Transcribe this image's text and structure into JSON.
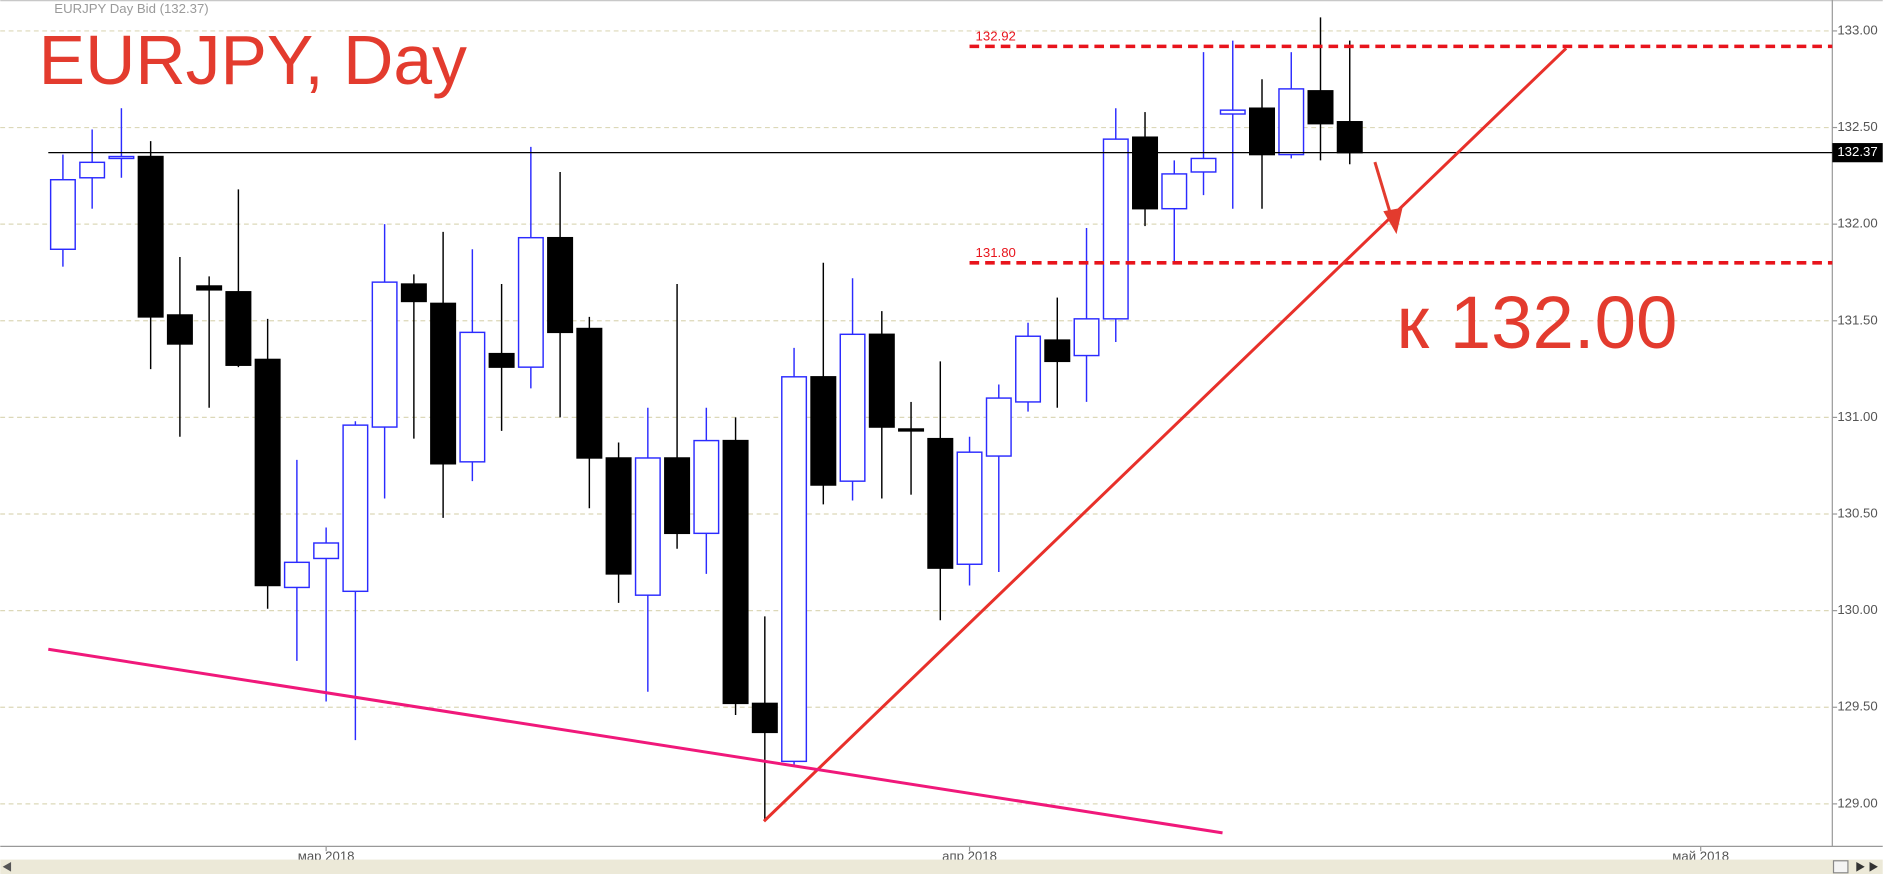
{
  "chart_data": {
    "type": "candlestick",
    "title": "EURJPY, Day",
    "subtitle": "EURJPY Day Bid (132.37)",
    "annotation": "к 132.00",
    "categories": [
      null,
      null,
      null,
      null,
      null,
      null,
      null,
      null,
      null,
      "мар 2018",
      null,
      null,
      null,
      null,
      null,
      null,
      null,
      null,
      null,
      null,
      null,
      null,
      null,
      null,
      null,
      null,
      null,
      null,
      null,
      null,
      null,
      "апр 2018",
      null,
      null,
      null,
      null,
      null,
      null,
      null,
      null,
      null,
      null,
      null,
      null,
      null,
      null,
      null,
      null,
      null,
      null,
      null,
      null,
      null,
      null,
      null,
      null,
      "май 2018",
      null,
      null,
      null,
      null
    ],
    "open": [
      131.87,
      132.24,
      132.34,
      132.35,
      131.53,
      131.68,
      131.65,
      131.3,
      130.12,
      130.27,
      130.1,
      130.95,
      131.69,
      131.59,
      130.77,
      131.33,
      131.26,
      131.93,
      131.46,
      130.79,
      130.08,
      130.79,
      130.4,
      130.88,
      129.52,
      129.22,
      131.21,
      130.67,
      131.43,
      130.94,
      130.89,
      130.24,
      130.8,
      131.08,
      131.4,
      131.32,
      131.51,
      132.45,
      132.08,
      132.27,
      132.57,
      132.6,
      132.36,
      132.69,
      132.53,
      null,
      null,
      null,
      null,
      null,
      null,
      null,
      null,
      null,
      null,
      null,
      null,
      null,
      null,
      null,
      null
    ],
    "high": [
      132.36,
      132.49,
      132.6,
      132.43,
      131.83,
      131.73,
      132.18,
      131.51,
      130.78,
      130.43,
      130.98,
      132.0,
      131.74,
      131.96,
      131.87,
      131.69,
      132.4,
      132.27,
      131.52,
      130.87,
      131.05,
      131.69,
      131.05,
      131.0,
      129.97,
      131.36,
      131.8,
      131.72,
      131.55,
      131.08,
      131.29,
      130.9,
      131.17,
      131.49,
      131.62,
      131.98,
      132.6,
      132.58,
      132.33,
      132.89,
      132.95,
      132.75,
      132.89,
      133.07,
      132.95,
      null,
      null,
      null,
      null,
      null,
      null,
      null,
      null,
      null,
      null,
      null,
      null,
      null,
      null,
      null,
      null
    ],
    "low": [
      131.78,
      132.08,
      132.24,
      131.25,
      130.9,
      131.05,
      131.26,
      130.01,
      129.74,
      129.53,
      129.33,
      130.58,
      130.89,
      130.48,
      130.67,
      130.93,
      131.15,
      131.0,
      130.53,
      130.04,
      129.58,
      130.32,
      130.19,
      129.46,
      128.91,
      129.2,
      130.55,
      130.57,
      130.58,
      130.6,
      129.95,
      130.13,
      130.2,
      131.03,
      131.05,
      131.08,
      131.39,
      131.99,
      131.8,
      132.15,
      132.08,
      132.08,
      132.34,
      132.33,
      132.31,
      null,
      null,
      null,
      null,
      null,
      null,
      null,
      null,
      null,
      null,
      null,
      null,
      null,
      null,
      null,
      null
    ],
    "close": [
      132.23,
      132.32,
      132.35,
      131.52,
      131.38,
      131.66,
      131.27,
      130.13,
      130.25,
      130.35,
      130.96,
      131.7,
      131.6,
      130.76,
      131.44,
      131.26,
      131.93,
      131.44,
      130.79,
      130.19,
      130.79,
      130.4,
      130.88,
      129.52,
      129.37,
      131.21,
      130.65,
      131.43,
      130.95,
      130.93,
      130.22,
      130.82,
      131.1,
      131.42,
      131.29,
      131.51,
      132.44,
      132.08,
      132.26,
      132.34,
      132.59,
      132.36,
      132.7,
      132.52,
      132.37,
      null,
      null,
      null,
      null,
      null,
      null,
      null,
      null,
      null,
      null,
      null,
      null,
      null,
      null,
      null,
      null
    ],
    "up_color": "#ffffff",
    "up_edge_color": "#2b2bff",
    "down_color": "#000000",
    "ylim": [
      128.78,
      133.16
    ],
    "yticks": [
      {
        "value": 129,
        "label": "129.00"
      },
      {
        "value": 129.5,
        "label": "129.50"
      },
      {
        "value": 130,
        "label": "130.00"
      },
      {
        "value": 130.5,
        "label": "130.50"
      },
      {
        "value": 131,
        "label": "131.00"
      },
      {
        "value": 131.5,
        "label": "131.50"
      },
      {
        "value": 132,
        "label": "132.00"
      },
      {
        "value": 132.5,
        "label": "132.50"
      },
      {
        "value": 133,
        "label": "133.00"
      }
    ],
    "grid": true,
    "levels": [
      {
        "value": 132.92,
        "label": "132.92",
        "color": "#e8141c",
        "dashed": true,
        "from": 31
      },
      {
        "value": 131.8,
        "label": "131.80",
        "color": "#e8141c",
        "dashed": true,
        "from": 31
      },
      {
        "value": 132.37,
        "label": "132.37",
        "color": "#000000",
        "dashed": false,
        "from": -0.5
      }
    ],
    "trendlines": [
      {
        "x": [
          23.97,
          51.4
        ],
        "y": [
          128.91,
          132.91
        ],
        "color": "#e8302a"
      },
      {
        "x": [
          -0.5,
          39.65
        ],
        "y": [
          129.8,
          128.85
        ],
        "color": "#f0187a"
      }
    ]
  }
}
